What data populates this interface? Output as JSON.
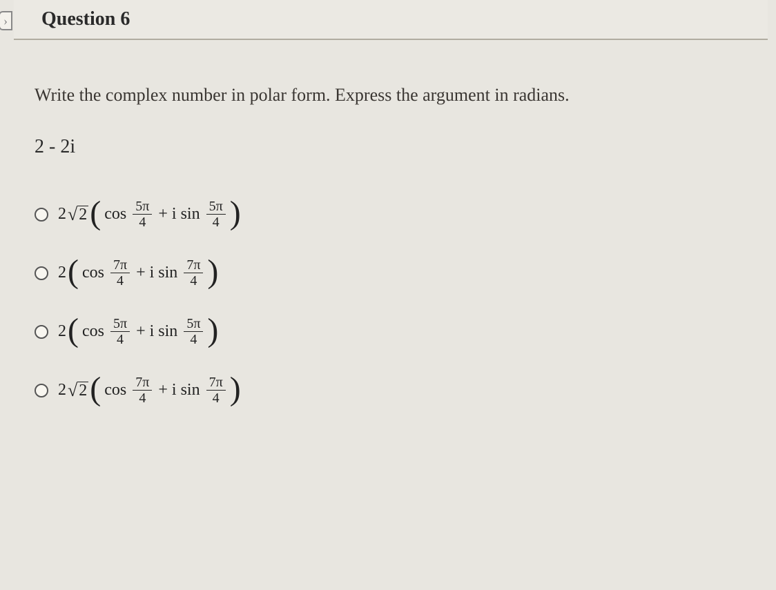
{
  "header": {
    "title": "Question 6"
  },
  "prompt": "Write the complex number in polar form. Express the argument in radians.",
  "expression": "2 - 2i",
  "options": [
    {
      "coef": "2",
      "has_sqrt": true,
      "sqrt_arg": "2",
      "angle_num": "5π",
      "angle_den": "4"
    },
    {
      "coef": "2",
      "has_sqrt": false,
      "sqrt_arg": "",
      "angle_num": "7π",
      "angle_den": "4"
    },
    {
      "coef": "2",
      "has_sqrt": false,
      "sqrt_arg": "",
      "angle_num": "5π",
      "angle_den": "4"
    },
    {
      "coef": "2",
      "has_sqrt": true,
      "sqrt_arg": "2",
      "angle_num": "7π",
      "angle_den": "4"
    }
  ],
  "labels": {
    "cos": "cos",
    "plus_isin": "+ i sin"
  },
  "colors": {
    "background": "#e8e6e0",
    "text": "#2a2a2a",
    "border": "#b0aca0"
  },
  "fonts": {
    "title_size": 28,
    "body_size": 26,
    "math_size": 24
  }
}
